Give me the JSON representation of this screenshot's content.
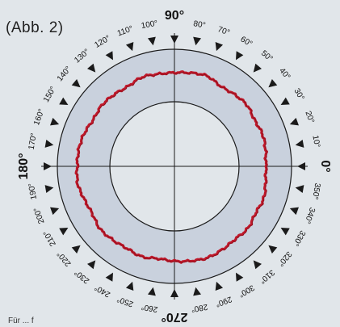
{
  "figure_label": "(Abb. 2)",
  "footnote": "Für ... f",
  "colors": {
    "background": "#e1e6ea",
    "ring": "#c9d1dd",
    "lines": "#1a1a1a",
    "curve": "#c0182a"
  },
  "angle_labels": [
    {
      "deg": 0,
      "text": "0°",
      "major": true
    },
    {
      "deg": 10,
      "text": "10°"
    },
    {
      "deg": 20,
      "text": "20°"
    },
    {
      "deg": 30,
      "text": "30°"
    },
    {
      "deg": 40,
      "text": "40°"
    },
    {
      "deg": 50,
      "text": "50°"
    },
    {
      "deg": 60,
      "text": "60°"
    },
    {
      "deg": 70,
      "text": "70°"
    },
    {
      "deg": 80,
      "text": "80°"
    },
    {
      "deg": 90,
      "text": "90°",
      "major": true
    },
    {
      "deg": 100,
      "text": "100°"
    },
    {
      "deg": 110,
      "text": "110°"
    },
    {
      "deg": 120,
      "text": "120°"
    },
    {
      "deg": 130,
      "text": "130°"
    },
    {
      "deg": 140,
      "text": "140°"
    },
    {
      "deg": 150,
      "text": "150°"
    },
    {
      "deg": 160,
      "text": "160°"
    },
    {
      "deg": 170,
      "text": "170°"
    },
    {
      "deg": 180,
      "text": "180°",
      "major": true
    },
    {
      "deg": 190,
      "text": "190°"
    },
    {
      "deg": 200,
      "text": "200°"
    },
    {
      "deg": 210,
      "text": "210°"
    },
    {
      "deg": 220,
      "text": "220°"
    },
    {
      "deg": 230,
      "text": "230°"
    },
    {
      "deg": 240,
      "text": "240°"
    },
    {
      "deg": 250,
      "text": "250°"
    },
    {
      "deg": 260,
      "text": "260°"
    },
    {
      "deg": 270,
      "text": "270°",
      "major": true
    },
    {
      "deg": 280,
      "text": "280°"
    },
    {
      "deg": 290,
      "text": "290°"
    },
    {
      "deg": 300,
      "text": "300°"
    },
    {
      "deg": 310,
      "text": "310°"
    },
    {
      "deg": 320,
      "text": "320°"
    },
    {
      "deg": 330,
      "text": "330°"
    },
    {
      "deg": 340,
      "text": "340°"
    },
    {
      "deg": 350,
      "text": "350°"
    }
  ],
  "directivity_pattern": {
    "description_note": "",
    "relative_radius": [
      0.78,
      0.79,
      0.8,
      0.79,
      0.81,
      0.8,
      0.79,
      0.82,
      0.81,
      0.8,
      0.8,
      0.81,
      0.79,
      0.8,
      0.81,
      0.8,
      0.82,
      0.83,
      0.83,
      0.84,
      0.82,
      0.81,
      0.83,
      0.82,
      0.81,
      0.82,
      0.8,
      0.81,
      0.82,
      0.83,
      0.82,
      0.81,
      0.82,
      0.8,
      0.81,
      0.79
    ]
  }
}
